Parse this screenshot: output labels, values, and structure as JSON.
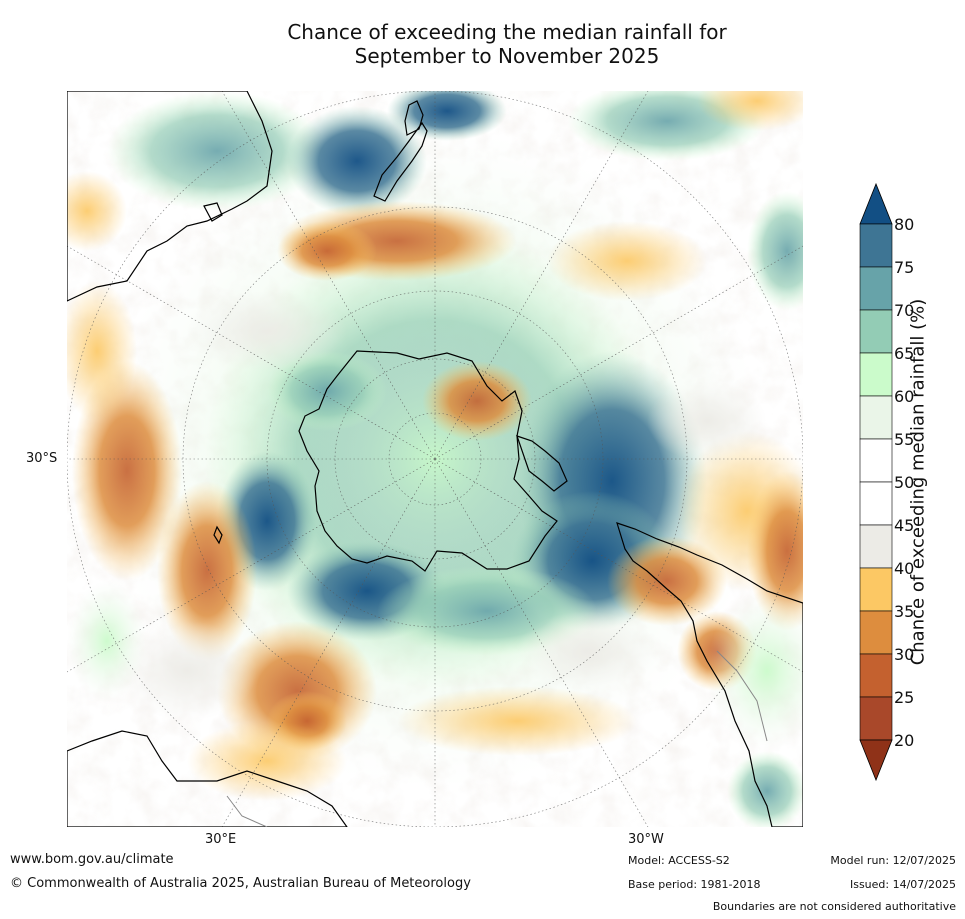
{
  "title": {
    "line1": "Chance of exceeding the median rainfall for",
    "line2": "September to November 2025"
  },
  "map": {
    "projection": "south-polar stereographic",
    "labels": {
      "left_lat": "30°S",
      "bottom_left_lon": "30°E",
      "bottom_right_lon": "30°W"
    }
  },
  "colorbar": {
    "title": "Chance of exceeding median rainfall (%)",
    "ticks": [
      "20",
      "25",
      "30",
      "35",
      "40",
      "45",
      "50",
      "55",
      "60",
      "65",
      "70",
      "75",
      "80"
    ],
    "colors": [
      "#8f3218",
      "#a9482a",
      "#c4612f",
      "#dd8d3e",
      "#fcc864",
      "#ecebe6",
      "#ffffff",
      "#ffffff",
      "#eaf5e8",
      "#cbfbcb",
      "#93ccb5",
      "#67a3a9",
      "#3e7594",
      "#124f84"
    ],
    "extend": "both"
  },
  "footer": {
    "website": "www.bom.gov.au/climate",
    "copyright": "© Commonwealth of Australia 2025, Australian Bureau of Meteorology",
    "model": "Model: ACCESS-S2",
    "base_period": "Base period: 1981-2018",
    "model_run": "Model run: 12/07/2025",
    "issued": "Issued: 14/07/2025",
    "disclaimer": "Boundaries are not considered authoritative"
  }
}
